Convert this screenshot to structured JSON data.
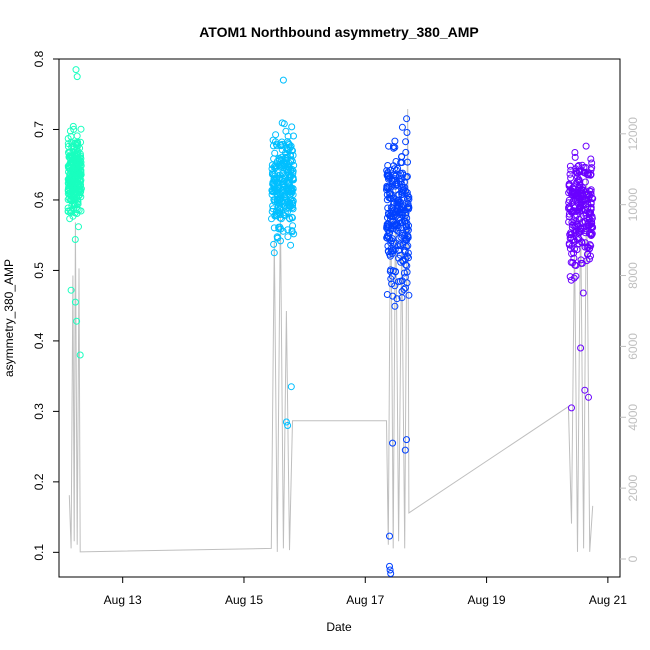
{
  "chart_data": {
    "type": "scatter",
    "title": "ATOM1 Northbound asymmetry_380_AMP",
    "xlabel": "Date",
    "ylabel": "asymmetry_380_AMP",
    "x_ticks": [
      "Aug 13",
      "Aug 15",
      "Aug 17",
      "Aug 19",
      "Aug 21"
    ],
    "x_tick_days": [
      13,
      15,
      17,
      19,
      21
    ],
    "xlim_days": [
      11.95,
      21.2
    ],
    "y_ticks": [
      0.1,
      0.2,
      0.3,
      0.4,
      0.5,
      0.6,
      0.7,
      0.8
    ],
    "ylim": [
      0.065,
      0.8
    ],
    "y2_ticks": [
      0,
      2000,
      4000,
      6000,
      8000,
      10000,
      12000
    ],
    "y2lim": [
      0,
      12700
    ],
    "y2_color": "#bfbfbf",
    "grid": false,
    "series": [
      {
        "color": "#19ffbf",
        "day_start": 12.1,
        "day_end": 12.32,
        "y_center": 0.635,
        "y_spread": 0.07,
        "y_min": 0.38,
        "y_max": 0.785,
        "outliers": [
          [
            12.15,
            0.472
          ],
          [
            12.22,
            0.455
          ],
          [
            12.24,
            0.428
          ],
          [
            12.3,
            0.38
          ],
          [
            12.23,
            0.785
          ],
          [
            12.25,
            0.775
          ]
        ]
      },
      {
        "color": "#00bfff",
        "day_start": 15.45,
        "day_end": 15.82,
        "y_center": 0.62,
        "y_spread": 0.09,
        "y_min": 0.27,
        "y_max": 0.77,
        "outliers": [
          [
            15.5,
            0.525
          ],
          [
            15.7,
            0.285
          ],
          [
            15.72,
            0.28
          ],
          [
            15.78,
            0.335
          ],
          [
            15.65,
            0.77
          ]
        ]
      },
      {
        "color": "#0040ff",
        "day_start": 17.35,
        "day_end": 17.72,
        "y_center": 0.58,
        "y_spread": 0.12,
        "y_min": 0.07,
        "y_max": 0.745,
        "outliers": [
          [
            17.4,
            0.123
          ],
          [
            17.4,
            0.08
          ],
          [
            17.41,
            0.075
          ],
          [
            17.42,
            0.07
          ],
          [
            17.45,
            0.255
          ],
          [
            17.68,
            0.26
          ],
          [
            17.66,
            0.245
          ]
        ]
      },
      {
        "color": "#6a00ff",
        "day_start": 20.35,
        "day_end": 20.75,
        "y_center": 0.59,
        "y_spread": 0.09,
        "y_min": 0.3,
        "y_max": 0.76,
        "outliers": [
          [
            20.4,
            0.305
          ],
          [
            20.62,
            0.33
          ],
          [
            20.68,
            0.32
          ],
          [
            20.55,
            0.39
          ]
        ]
      }
    ],
    "secondary_line": {
      "color": "#bfbfbf",
      "axis": "right",
      "points": [
        [
          12.12,
          1800
        ],
        [
          12.15,
          300
        ],
        [
          12.18,
          8000
        ],
        [
          12.2,
          500
        ],
        [
          12.22,
          9500
        ],
        [
          12.25,
          400
        ],
        [
          12.28,
          8200
        ],
        [
          12.3,
          200
        ],
        [
          15.45,
          300
        ],
        [
          15.5,
          9000
        ],
        [
          15.55,
          200
        ],
        [
          15.6,
          9800
        ],
        [
          15.65,
          300
        ],
        [
          15.7,
          7000
        ],
        [
          15.75,
          250
        ],
        [
          15.8,
          3900
        ],
        [
          17.35,
          3900
        ],
        [
          17.38,
          400
        ],
        [
          17.42,
          11000
        ],
        [
          17.46,
          300
        ],
        [
          17.5,
          10500
        ],
        [
          17.55,
          500
        ],
        [
          17.6,
          9000
        ],
        [
          17.65,
          300
        ],
        [
          17.7,
          12700
        ],
        [
          17.72,
          1300
        ],
        [
          20.35,
          4300
        ],
        [
          20.4,
          1000
        ],
        [
          20.45,
          9000
        ],
        [
          20.5,
          200
        ],
        [
          20.55,
          10000
        ],
        [
          20.6,
          300
        ],
        [
          20.65,
          11000
        ],
        [
          20.7,
          200
        ],
        [
          20.75,
          1500
        ]
      ]
    }
  }
}
